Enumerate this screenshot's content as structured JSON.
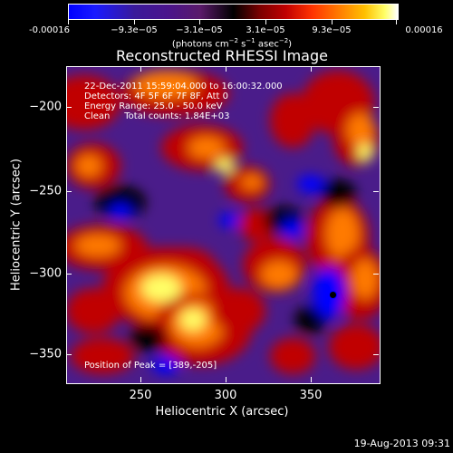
{
  "colorbar": {
    "tick_labels": [
      "-0.00016",
      "−9.3e−05",
      "−3.1e−05",
      "3.1e−05",
      "9.3e−05",
      "0.00016"
    ],
    "units_main": "(photons cm",
    "units_exp1": "−2",
    "units_mid": " s",
    "units_exp2": "−1",
    "units_tail": " asec",
    "units_exp3": "−2",
    "units_close": ")"
  },
  "plot": {
    "title": "Reconstructed RHESSI Image",
    "annotation_time": "22-Dec-2011 15:59:04.000 to 16:00:32.000",
    "annotation_detectors": "Detectors: 4F 5F 6F 7F 8F, Att 0",
    "annotation_energy": "Energy Range: 25.0 - 50.0 keV",
    "annotation_clean": "Clean     Total counts: 1.84E+03",
    "peak_label": "Position of Peak = [389,-205]"
  },
  "axes": {
    "x_title": "Heliocentric X (arcsec)",
    "y_title": "Heliocentric Y (arcsec)",
    "x_ticks": [
      "250",
      "300",
      "350"
    ],
    "y_ticks": [
      "−200",
      "−250",
      "−300",
      "−350"
    ]
  },
  "footer": {
    "date": "19-Aug-2013 09:31"
  },
  "chart_data": {
    "type": "heatmap",
    "title": "Reconstructed RHESSI Image",
    "xlabel": "Heliocentric X (arcsec)",
    "ylabel": "Heliocentric Y (arcsec)",
    "xlim": [
      209,
      394
    ],
    "ylim": [
      -372,
      -183
    ],
    "colorbar_range": [
      -0.00016,
      0.00016
    ],
    "colormap_colors": [
      "#0000ff",
      "#4a148c",
      "#000000",
      "#c00000",
      "#ff7a00",
      "#ffff66",
      "#ffffff"
    ],
    "peak_position": [
      389,
      -205
    ]
  }
}
